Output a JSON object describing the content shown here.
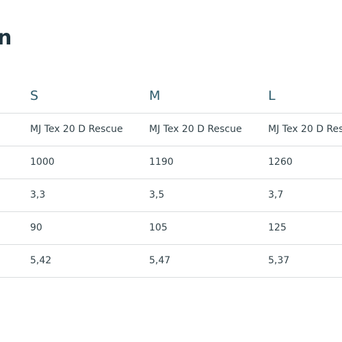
{
  "heading": "n",
  "table": {
    "headers": [
      "S",
      "M",
      "L"
    ],
    "rows": [
      [
        "MJ Tex 20 D Rescue",
        "MJ Tex 20 D Rescue",
        "MJ Tex 20 D Res"
      ],
      [
        "1000",
        "1190",
        "1260"
      ],
      [
        "3,3",
        "3,5",
        "3,7"
      ],
      [
        "90",
        "105",
        "125"
      ],
      [
        "5,42",
        "5,47",
        "5,37"
      ]
    ]
  }
}
